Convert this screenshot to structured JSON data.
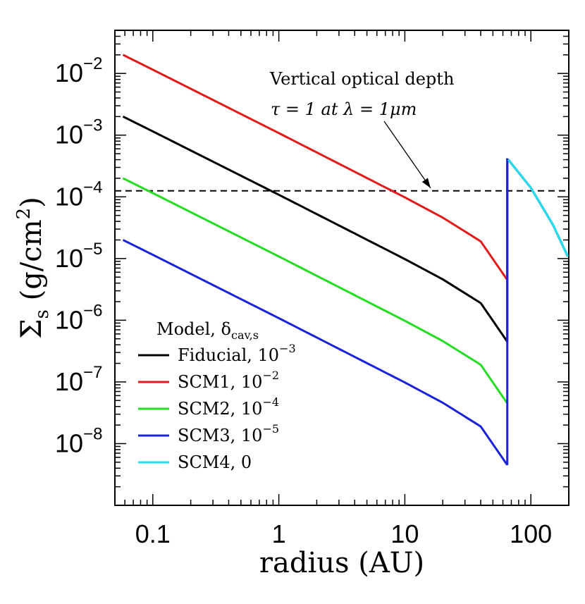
{
  "chart_data": {
    "type": "line",
    "xscale": "log",
    "yscale": "log",
    "xlim": [
      0.05,
      200
    ],
    "ylim": [
      1e-09,
      0.05
    ],
    "xlabel": "radius (AU)",
    "ylabel": {
      "main": "Σ",
      "sub": "s",
      "unit_open": " (g/cm",
      "unit_sup": "2",
      "unit_close": ")"
    },
    "xticks": [
      {
        "value": 0.1,
        "label": "0.1"
      },
      {
        "value": 1,
        "label": "1"
      },
      {
        "value": 10,
        "label": "10"
      },
      {
        "value": 100,
        "label": "100"
      }
    ],
    "yticks": [
      {
        "value": 0.01,
        "base": "10",
        "exp": "−2"
      },
      {
        "value": 0.001,
        "base": "10",
        "exp": "−3"
      },
      {
        "value": 0.0001,
        "base": "10",
        "exp": "−4"
      },
      {
        "value": 1e-05,
        "base": "10",
        "exp": "−5"
      },
      {
        "value": 1e-06,
        "base": "10",
        "exp": "−6"
      },
      {
        "value": 1e-07,
        "base": "10",
        "exp": "−7"
      },
      {
        "value": 1e-08,
        "base": "10",
        "exp": "−8"
      }
    ],
    "reference_line": {
      "y": 0.000125,
      "style": "dashed",
      "color": "#000000"
    },
    "annotation": {
      "line1": "Vertical optical depth",
      "line2": "τ = 1 at λ = 1μm",
      "arrow_target": {
        "x": 16,
        "y": 0.000125
      }
    },
    "cavity_radius": 65,
    "outer_radius": 200,
    "legend": {
      "title_main": "Model, δ",
      "title_sub": "cav,s",
      "placement": "lower-left"
    },
    "series": [
      {
        "name": "Fiducial",
        "label": "Fiducial, 10",
        "label_sup": "−3",
        "color": "#000000",
        "inner": [
          [
            0.058,
            0.002
          ],
          [
            0.1,
            0.00115
          ],
          [
            1,
            0.000108
          ],
          [
            10,
            9.8e-06
          ],
          [
            20,
            4.6e-06
          ],
          [
            40,
            1.9e-06
          ],
          [
            65,
            4.5e-07
          ]
        ],
        "outer": [
          [
            65,
            0.00042
          ],
          [
            100,
            0.00014
          ],
          [
            150,
            3.5e-05
          ],
          [
            200,
            1e-05
          ]
        ]
      },
      {
        "name": "SCM1",
        "label": "SCM1, 10",
        "label_sup": "−2",
        "color": "#e31a1a",
        "inner": [
          [
            0.058,
            0.02
          ],
          [
            0.1,
            0.0115
          ],
          [
            1,
            0.00108
          ],
          [
            10,
            9.8e-05
          ],
          [
            20,
            4.6e-05
          ],
          [
            40,
            1.9e-05
          ],
          [
            65,
            4.5e-06
          ]
        ],
        "outer": []
      },
      {
        "name": "SCM2",
        "label": "SCM2, 10",
        "label_sup": "−4",
        "color": "#22dd22",
        "inner": [
          [
            0.058,
            0.0002
          ],
          [
            0.1,
            0.000115
          ],
          [
            1,
            1.08e-05
          ],
          [
            10,
            9.8e-07
          ],
          [
            20,
            4.6e-07
          ],
          [
            40,
            1.9e-07
          ],
          [
            65,
            4.5e-08
          ]
        ],
        "outer": []
      },
      {
        "name": "SCM3",
        "label": "SCM3, 10",
        "label_sup": "−5",
        "color": "#1a22dd",
        "inner": [
          [
            0.058,
            2e-05
          ],
          [
            0.1,
            1.15e-05
          ],
          [
            1,
            1.08e-06
          ],
          [
            10,
            9.8e-08
          ],
          [
            20,
            4.6e-08
          ],
          [
            40,
            1.9e-08
          ],
          [
            65,
            4.5e-09
          ]
        ],
        "outer": [
          [
            65,
            0.00042
          ],
          [
            100,
            0.00014
          ],
          [
            150,
            3.5e-05
          ],
          [
            200,
            1e-05
          ]
        ]
      },
      {
        "name": "SCM4",
        "label": "SCM4, 0",
        "label_sup": "",
        "color": "#22e0ee",
        "inner": [],
        "outer": [
          [
            65,
            0.00042
          ],
          [
            100,
            0.00014
          ],
          [
            150,
            3.5e-05
          ],
          [
            200,
            1e-05
          ]
        ]
      }
    ]
  }
}
